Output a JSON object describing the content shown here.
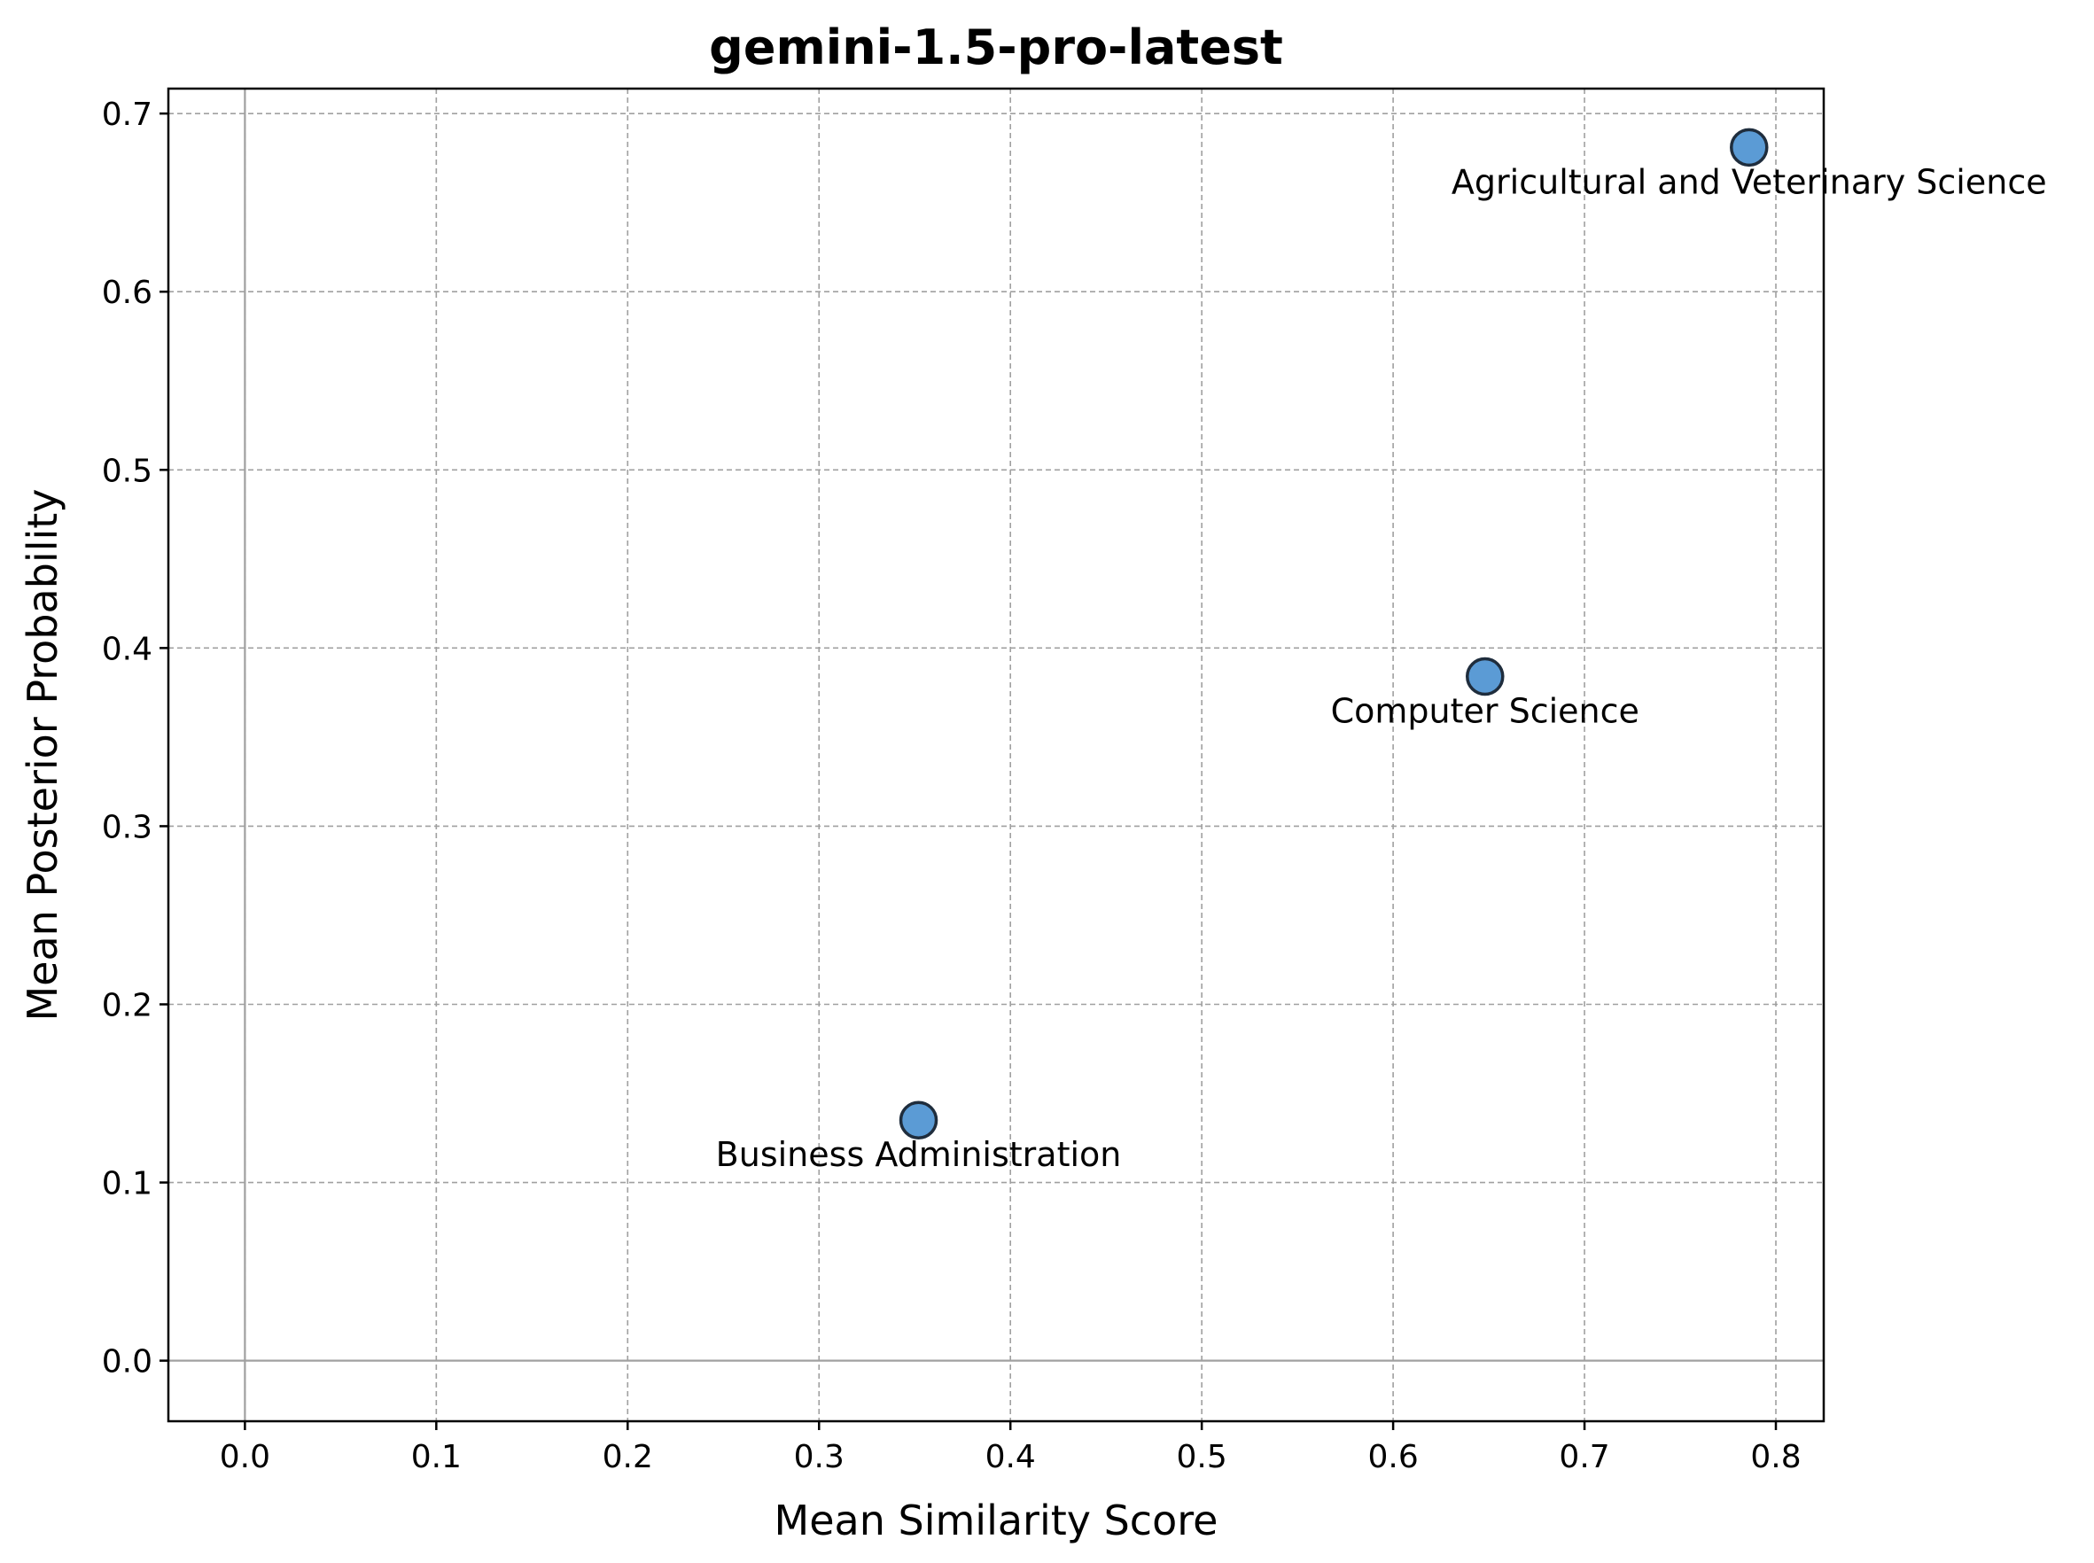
{
  "chart_data": {
    "type": "scatter",
    "title": "gemini-1.5-pro-latest",
    "xlabel": "Mean Similarity Score",
    "ylabel": "Mean Posterior Probability",
    "xlim": [
      -0.04,
      0.825
    ],
    "ylim": [
      -0.034,
      0.714
    ],
    "x_ticks": [
      "0.0",
      "0.1",
      "0.2",
      "0.3",
      "0.4",
      "0.5",
      "0.6",
      "0.7",
      "0.8"
    ],
    "y_ticks": [
      "0.0",
      "0.1",
      "0.2",
      "0.3",
      "0.4",
      "0.5",
      "0.6",
      "0.7"
    ],
    "grid": true,
    "zero_lines": true,
    "point_color": "#5b9bd5",
    "point_edge_color": "#1f2d3d",
    "points": [
      {
        "label": "Agricultural and Veterinary Science",
        "x": 0.786,
        "y": 0.681
      },
      {
        "label": "Computer Science",
        "x": 0.648,
        "y": 0.384
      },
      {
        "label": "Business Administration",
        "x": 0.352,
        "y": 0.135
      }
    ]
  }
}
